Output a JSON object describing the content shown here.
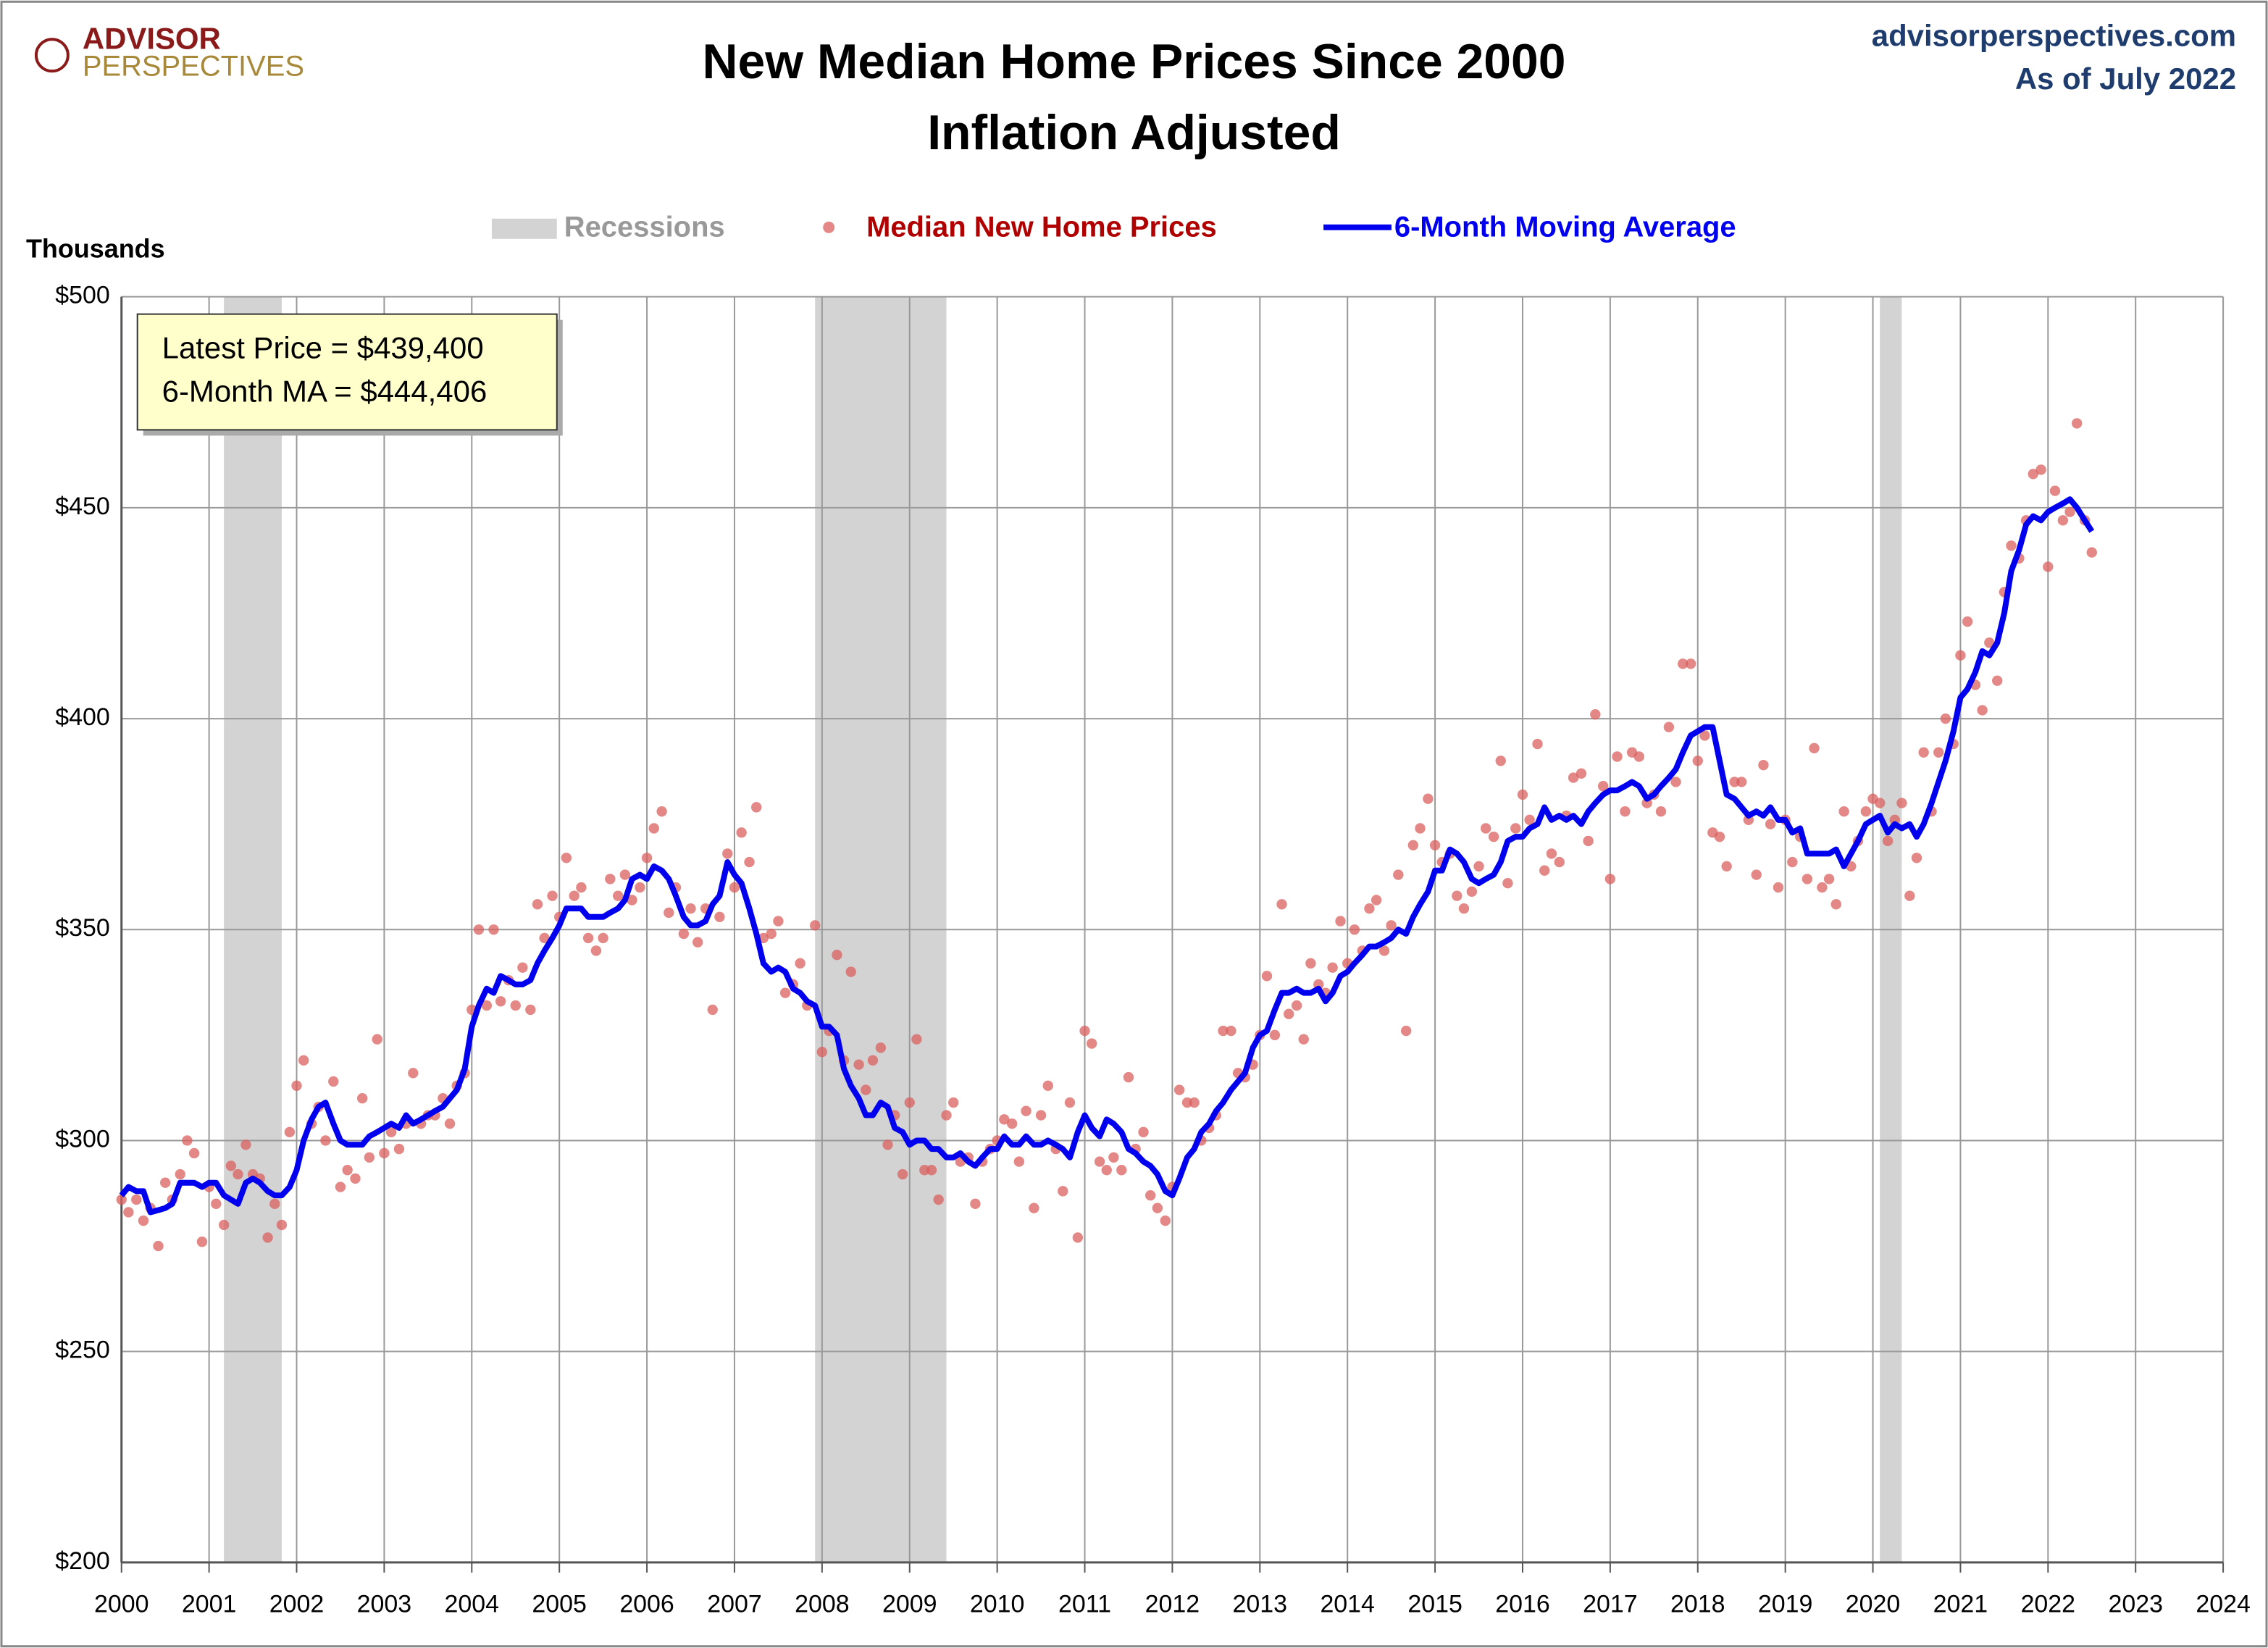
{
  "chart_data": {
    "type": "scatter-line",
    "title": "New Median Home Prices Since 2000",
    "subtitle": "Inflation Adjusted",
    "logo": [
      "ADVISOR",
      "PERSPECTIVES"
    ],
    "source": "advisorperspectives.com",
    "as_of": "As of July 2022",
    "y_label": "Thousands",
    "annotations": [
      "Latest Price = $439,400",
      "6-Month MA = $444,406"
    ],
    "recessions": {
      "name": "Recessions",
      "color": "#d3d3d3",
      "ranges": [
        [
          2001.17,
          2001.83
        ],
        [
          2007.92,
          2009.42
        ],
        [
          2020.08,
          2020.33
        ]
      ]
    },
    "xlim": [
      2000,
      2024
    ],
    "xticks": [
      2000,
      2001,
      2002,
      2003,
      2004,
      2005,
      2006,
      2007,
      2008,
      2009,
      2010,
      2011,
      2012,
      2013,
      2014,
      2015,
      2016,
      2017,
      2018,
      2019,
      2020,
      2021,
      2022,
      2023,
      2024
    ],
    "ylim": [
      200,
      500
    ],
    "yticks": [
      {
        "value": 200,
        "label": "$200"
      },
      {
        "value": 250,
        "label": "$250"
      },
      {
        "value": 300,
        "label": "$300"
      },
      {
        "value": 350,
        "label": "$350"
      },
      {
        "value": 400,
        "label": "$400"
      },
      {
        "value": 450,
        "label": "$450"
      },
      {
        "value": 500,
        "label": "$500"
      }
    ],
    "grid": true,
    "x": [
      2000,
      2000.08,
      2000.17,
      2000.25,
      2000.33,
      2000.42,
      2000.5,
      2000.58,
      2000.67,
      2000.75,
      2000.83,
      2000.92,
      2001,
      2001.08,
      2001.17,
      2001.25,
      2001.33,
      2001.42,
      2001.5,
      2001.58,
      2001.67,
      2001.75,
      2001.83,
      2001.92,
      2002,
      2002.08,
      2002.17,
      2002.25,
      2002.33,
      2002.42,
      2002.5,
      2002.58,
      2002.67,
      2002.75,
      2002.83,
      2002.92,
      2003,
      2003.08,
      2003.17,
      2003.25,
      2003.33,
      2003.42,
      2003.5,
      2003.58,
      2003.67,
      2003.75,
      2003.83,
      2003.92,
      2004,
      2004.08,
      2004.17,
      2004.25,
      2004.33,
      2004.42,
      2004.5,
      2004.58,
      2004.67,
      2004.75,
      2004.83,
      2004.92,
      2005,
      2005.08,
      2005.17,
      2005.25,
      2005.33,
      2005.42,
      2005.5,
      2005.58,
      2005.67,
      2005.75,
      2005.83,
      2005.92,
      2006,
      2006.08,
      2006.17,
      2006.25,
      2006.33,
      2006.42,
      2006.5,
      2006.58,
      2006.67,
      2006.75,
      2006.83,
      2006.92,
      2007,
      2007.08,
      2007.17,
      2007.25,
      2007.33,
      2007.42,
      2007.5,
      2007.58,
      2007.67,
      2007.75,
      2007.83,
      2007.92,
      2008,
      2008.08,
      2008.17,
      2008.25,
      2008.33,
      2008.42,
      2008.5,
      2008.58,
      2008.67,
      2008.75,
      2008.83,
      2008.92,
      2009,
      2009.08,
      2009.17,
      2009.25,
      2009.33,
      2009.42,
      2009.5,
      2009.58,
      2009.67,
      2009.75,
      2009.83,
      2009.92,
      2010,
      2010.08,
      2010.17,
      2010.25,
      2010.33,
      2010.42,
      2010.5,
      2010.58,
      2010.67,
      2010.75,
      2010.83,
      2010.92,
      2011,
      2011.08,
      2011.17,
      2011.25,
      2011.33,
      2011.42,
      2011.5,
      2011.58,
      2011.67,
      2011.75,
      2011.83,
      2011.92,
      2012,
      2012.08,
      2012.17,
      2012.25,
      2012.33,
      2012.42,
      2012.5,
      2012.58,
      2012.67,
      2012.75,
      2012.83,
      2012.92,
      2013,
      2013.08,
      2013.17,
      2013.25,
      2013.33,
      2013.42,
      2013.5,
      2013.58,
      2013.67,
      2013.75,
      2013.83,
      2013.92,
      2014,
      2014.08,
      2014.17,
      2014.25,
      2014.33,
      2014.42,
      2014.5,
      2014.58,
      2014.67,
      2014.75,
      2014.83,
      2014.92,
      2015,
      2015.08,
      2015.17,
      2015.25,
      2015.33,
      2015.42,
      2015.5,
      2015.58,
      2015.67,
      2015.75,
      2015.83,
      2015.92,
      2016,
      2016.08,
      2016.17,
      2016.25,
      2016.33,
      2016.42,
      2016.5,
      2016.58,
      2016.67,
      2016.75,
      2016.83,
      2016.92,
      2017,
      2017.08,
      2017.17,
      2017.25,
      2017.33,
      2017.42,
      2017.5,
      2017.58,
      2017.67,
      2017.75,
      2017.83,
      2017.92,
      2018,
      2018.08,
      2018.17,
      2018.25,
      2018.33,
      2018.42,
      2018.5,
      2018.58,
      2018.67,
      2018.75,
      2018.83,
      2018.92,
      2019,
      2019.08,
      2019.17,
      2019.25,
      2019.33,
      2019.42,
      2019.5,
      2019.58,
      2019.67,
      2019.75,
      2019.83,
      2019.92,
      2020,
      2020.08,
      2020.17,
      2020.25,
      2020.33,
      2020.42,
      2020.5,
      2020.58,
      2020.67,
      2020.75,
      2020.83,
      2020.92,
      2021,
      2021.08,
      2021.17,
      2021.25,
      2021.33,
      2021.42,
      2021.5,
      2021.58,
      2021.67,
      2021.75,
      2021.83,
      2021.92,
      2022,
      2022.08,
      2022.17,
      2022.25,
      2022.33,
      2022.42,
      2022.5
    ],
    "series": [
      {
        "name": "Median New Home Prices",
        "color": "#d9605f",
        "values": [
          286,
          283,
          286,
          281,
          284,
          275,
          290,
          286,
          292,
          300,
          297,
          276,
          289,
          285,
          280,
          294,
          292,
          299,
          292,
          291,
          277,
          285,
          280,
          302,
          313,
          319,
          304,
          308,
          300,
          314,
          289,
          293,
          291,
          310,
          296,
          324,
          297,
          302,
          298,
          304,
          316,
          304,
          306,
          306,
          310,
          304,
          313,
          316,
          331,
          350,
          332,
          350,
          333,
          338,
          332,
          341,
          331,
          356,
          348,
          358,
          353,
          367,
          358,
          360,
          348,
          345,
          348,
          362,
          358,
          363,
          357,
          360,
          367,
          374,
          378,
          354,
          360,
          349,
          355,
          347,
          355,
          331,
          353,
          368,
          360,
          373,
          366,
          379,
          348,
          349,
          352,
          335,
          337,
          342,
          332,
          351,
          321,
          326,
          344,
          319,
          340,
          318,
          312,
          319,
          322,
          299,
          306,
          292,
          309,
          324,
          293,
          293,
          286,
          306,
          309,
          295,
          296,
          285,
          295,
          298,
          300,
          305,
          304,
          295,
          307,
          284,
          306,
          313,
          298,
          288,
          309,
          277,
          326,
          323,
          295,
          293,
          296,
          293,
          315,
          298,
          302,
          287,
          284,
          281,
          289,
          312,
          309,
          309,
          300,
          303,
          306,
          326,
          326,
          316,
          315,
          318,
          325,
          339,
          325,
          356,
          330,
          332,
          324,
          342,
          337,
          335,
          341,
          352,
          342,
          350,
          345,
          355,
          357,
          345,
          351,
          363,
          326,
          370,
          374,
          381,
          370,
          366,
          368,
          358,
          355,
          359,
          365,
          374,
          372,
          390,
          361,
          374,
          382,
          376,
          394,
          364,
          368,
          366,
          377,
          386,
          387,
          371,
          401,
          384,
          362,
          391,
          378,
          392,
          391,
          380,
          382,
          378,
          398,
          385,
          413,
          413,
          390,
          396,
          373,
          372,
          365,
          385,
          385,
          376,
          363,
          389,
          375,
          360,
          376,
          366,
          372,
          362,
          393,
          360,
          362,
          356,
          378,
          365,
          371,
          378,
          381,
          380,
          371,
          376,
          380,
          358,
          367,
          392,
          378,
          392,
          400,
          394,
          415,
          423,
          408,
          402,
          418,
          409,
          430,
          441,
          438,
          447,
          458,
          459,
          436,
          454,
          447,
          449,
          470,
          447,
          439.4
        ]
      },
      {
        "name": "6-Month Moving Average",
        "color": "#0000ee",
        "values": [
          287,
          289,
          288,
          288,
          283,
          283.5,
          284,
          285,
          290,
          290,
          290,
          289,
          290,
          290,
          287,
          286,
          285,
          290,
          291,
          290,
          288,
          287,
          287,
          289,
          293,
          300,
          305,
          308,
          309,
          304,
          300,
          299,
          299,
          299,
          301,
          302,
          303,
          304,
          303,
          306,
          304,
          305,
          306,
          307,
          308,
          310,
          312,
          317,
          327,
          332,
          336,
          335,
          339,
          338,
          337,
          337,
          338,
          342,
          345,
          348,
          351,
          355,
          355,
          355,
          353,
          353,
          353,
          354,
          355,
          357,
          362,
          363,
          362,
          365,
          364,
          362,
          358,
          353,
          351,
          351,
          352,
          356,
          358,
          366,
          363,
          361,
          355,
          349,
          342,
          340,
          341,
          340,
          336,
          335,
          333,
          332,
          327,
          327,
          325,
          317,
          313,
          310,
          306,
          306,
          309,
          308,
          303,
          302,
          299,
          300,
          300,
          298,
          298,
          296,
          296,
          297,
          295,
          294,
          296,
          298,
          298,
          301,
          299,
          299,
          301,
          299,
          299,
          300,
          299,
          298,
          296,
          302,
          306,
          303,
          301,
          305,
          304,
          302,
          298,
          297,
          295,
          294,
          292,
          288,
          287,
          291,
          296,
          298,
          302,
          304,
          307,
          309,
          312,
          314,
          316,
          322,
          325,
          326,
          331,
          335,
          335,
          336,
          335,
          335,
          336,
          333,
          335,
          339,
          340,
          342,
          344,
          346,
          346,
          347,
          348,
          350,
          349,
          353,
          356,
          359,
          364,
          364,
          369,
          368,
          366,
          362,
          361,
          362,
          363,
          366,
          371,
          372,
          372,
          374,
          375,
          379,
          376,
          377,
          376,
          377,
          375,
          378,
          380,
          382,
          383,
          383,
          384,
          385,
          384,
          381,
          382,
          384,
          386,
          388,
          392,
          396,
          397,
          398,
          398,
          390,
          382,
          381,
          379,
          377,
          378,
          377,
          379,
          376,
          376,
          373,
          374,
          368,
          368,
          368,
          368,
          369,
          365,
          368,
          371,
          375,
          376,
          377,
          373,
          375,
          374,
          375,
          372,
          375,
          380,
          385,
          390,
          397,
          405,
          407,
          411,
          416,
          415,
          418,
          425,
          435,
          440,
          446,
          448,
          447,
          449,
          450,
          451,
          452,
          450,
          447,
          444.406
        ]
      }
    ]
  }
}
